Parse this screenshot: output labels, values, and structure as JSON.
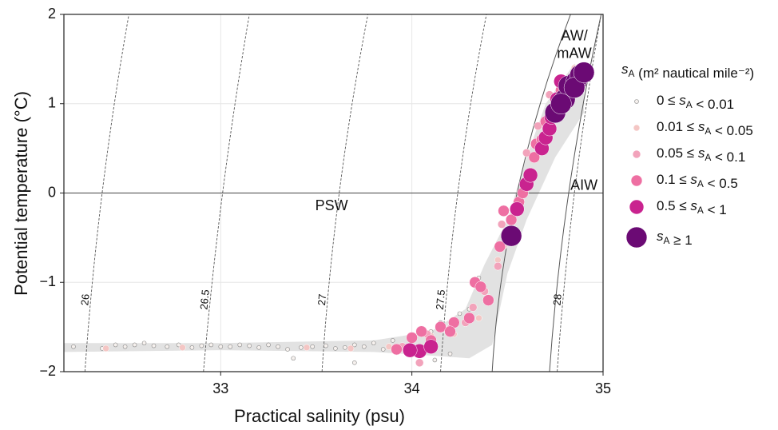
{
  "chart_data": {
    "type": "scatter",
    "xlabel": "Practical salinity (psu)",
    "ylabel": "Potential temperature (°C)",
    "xlim": [
      32.18,
      35
    ],
    "ylim": [
      -2,
      2
    ],
    "xticks": [
      33,
      34,
      35
    ],
    "yticks": [
      {
        "value": -2,
        "label": "−2"
      },
      {
        "value": -1,
        "label": "−1"
      },
      0,
      1,
      2
    ],
    "grid": true,
    "hline": 0,
    "legend_title": "sA (m² nautical mile⁻²)",
    "legend_position": "right",
    "envelope": {
      "color": "#e2e2e2",
      "x": [
        32.18,
        33.0,
        33.8,
        34.1,
        34.3,
        34.42,
        34.5,
        34.6,
        34.75,
        34.9,
        34.9,
        34.85,
        34.7,
        34.6,
        34.5,
        34.38,
        34.28,
        34.1,
        33.8,
        33.0,
        32.18
      ],
      "y": [
        -1.78,
        -1.76,
        -1.78,
        -1.82,
        -1.85,
        -1.7,
        -0.9,
        -0.3,
        0.4,
        0.9,
        1.3,
        1.45,
        1.0,
        0.4,
        -0.3,
        -0.8,
        -1.3,
        -1.55,
        -1.65,
        -1.68,
        -1.68
      ]
    },
    "isopycnals": [
      {
        "label": "26",
        "x": [
          32.29,
          32.38,
          32.52
        ],
        "y": [
          -2,
          0,
          2
        ]
      },
      {
        "label": "26.5",
        "x": [
          32.91,
          33.01,
          33.15
        ],
        "y": [
          -2,
          0,
          2
        ]
      },
      {
        "label": "27",
        "x": [
          33.53,
          33.62,
          33.77
        ],
        "y": [
          -2,
          0,
          2
        ]
      },
      {
        "label": "27.5",
        "x": [
          34.15,
          34.24,
          34.39
        ],
        "y": [
          -2,
          0,
          2
        ]
      },
      {
        "label": "28",
        "x": [
          34.76,
          34.85,
          34.99
        ],
        "y": [
          -2,
          0,
          2
        ]
      }
    ],
    "boundaries": [
      {
        "x": [
          34.42,
          34.55,
          34.83
        ],
        "y": [
          -2,
          0,
          2
        ]
      },
      {
        "x": [
          34.72,
          34.82,
          34.99
        ],
        "y": [
          -2,
          0,
          2
        ]
      }
    ],
    "annotations": [
      {
        "lines": [
          "AW/",
          "mAW"
        ],
        "x": 34.85,
        "y": 1.75
      },
      {
        "lines": [
          "AIW"
        ],
        "x": 34.9,
        "y": 0.08
      },
      {
        "lines": [
          "PSW"
        ],
        "x": 33.58,
        "y": -0.15
      }
    ],
    "series": [
      {
        "name": "0 ≤ sA < 0.01",
        "color": "#f6f1ee",
        "size": 2.5,
        "x": [
          32.23,
          32.38,
          32.45,
          32.5,
          32.55,
          32.6,
          32.65,
          32.72,
          32.78,
          32.85,
          32.9,
          32.95,
          33.0,
          33.05,
          33.1,
          33.15,
          33.2,
          33.25,
          33.3,
          33.35,
          33.42,
          33.48,
          33.55,
          33.6,
          33.65,
          33.7,
          33.75,
          33.8,
          33.85,
          33.9,
          33.95,
          34.0,
          34.05,
          34.1,
          34.15,
          34.2,
          34.25,
          34.3,
          34.35,
          33.38,
          33.7,
          34.12
        ],
        "y": [
          -1.72,
          -1.74,
          -1.7,
          -1.72,
          -1.7,
          -1.68,
          -1.71,
          -1.72,
          -1.7,
          -1.73,
          -1.71,
          -1.7,
          -1.72,
          -1.72,
          -1.7,
          -1.71,
          -1.73,
          -1.7,
          -1.72,
          -1.75,
          -1.73,
          -1.72,
          -1.71,
          -1.74,
          -1.73,
          -1.7,
          -1.72,
          -1.68,
          -1.75,
          -1.65,
          -1.7,
          -1.6,
          -1.72,
          -1.55,
          -1.45,
          -1.8,
          -1.35,
          -1.3,
          -0.95,
          -1.85,
          -1.9,
          -1.87
        ]
      },
      {
        "name": "0.01 ≤ sA < 0.05",
        "color": "#f4c6c4",
        "size": 4,
        "x": [
          32.4,
          32.8,
          33.45,
          33.68,
          33.88,
          34.1,
          34.22,
          34.35,
          34.45,
          34.48,
          34.58,
          34.85
        ],
        "y": [
          -1.74,
          -1.73,
          -1.73,
          -1.74,
          -1.72,
          -1.6,
          -1.58,
          -1.4,
          -0.75,
          -0.6,
          0.1,
          1.4
        ]
      },
      {
        "name": "0.05 ≤ sA < 0.1",
        "color": "#f2a3bb",
        "size": 5,
        "x": [
          33.95,
          34.08,
          34.2,
          34.28,
          34.32,
          34.38,
          34.45,
          34.5,
          34.47,
          34.55,
          34.6,
          34.66,
          34.72,
          34.04
        ],
        "y": [
          -1.72,
          -1.58,
          -1.52,
          -1.45,
          -1.28,
          -1.1,
          -0.82,
          -0.55,
          -0.35,
          -0.2,
          0.45,
          0.75,
          1.1,
          -1.9
        ]
      },
      {
        "name": "0.1 ≤ sA < 0.5",
        "color": "#ee6fa2",
        "size": 7,
        "x": [
          33.92,
          34.0,
          34.05,
          34.15,
          34.22,
          34.3,
          34.33,
          34.36,
          34.4,
          34.46,
          34.52,
          34.56,
          34.58,
          34.62,
          34.64,
          34.65,
          34.68,
          34.7,
          34.75,
          34.78,
          34.1,
          34.48,
          34.2
        ],
        "y": [
          -1.75,
          -1.62,
          -1.55,
          -1.5,
          -1.45,
          -1.4,
          -1.0,
          -1.05,
          -1.2,
          -0.6,
          -0.3,
          -0.1,
          0.0,
          0.22,
          0.4,
          0.55,
          0.6,
          0.8,
          0.95,
          1.15,
          -1.65,
          -0.2,
          -1.55
        ]
      },
      {
        "name": "0.5 ≤ sA < 1",
        "color": "#c9238f",
        "size": 9,
        "x": [
          34.04,
          34.1,
          34.55,
          34.6,
          34.62,
          34.68,
          34.7,
          34.72,
          34.73,
          34.76,
          34.8,
          34.78,
          34.83,
          33.99
        ],
        "y": [
          -1.77,
          -1.72,
          -0.18,
          0.1,
          0.2,
          0.5,
          0.62,
          0.72,
          0.85,
          1.05,
          1.1,
          1.25,
          1.2,
          -1.76
        ]
      },
      {
        "name": "sA ≥ 1",
        "color": "#6b0a74",
        "size": 13,
        "x": [
          34.52,
          34.75,
          34.8,
          34.82,
          34.86,
          34.88,
          34.85,
          34.78,
          34.9
        ],
        "y": [
          -0.48,
          0.9,
          1.05,
          1.2,
          1.25,
          1.32,
          1.18,
          1.0,
          1.35
        ]
      }
    ]
  }
}
